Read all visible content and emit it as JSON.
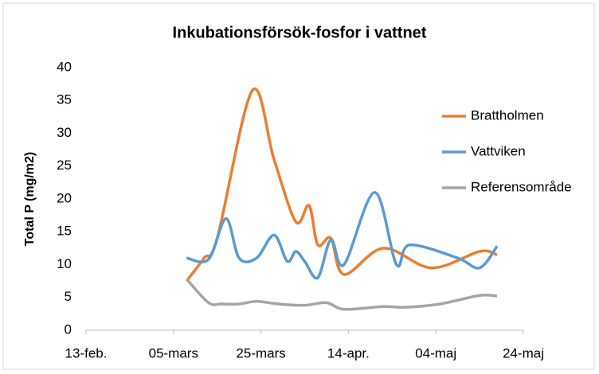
{
  "chart_data": {
    "type": "line",
    "title": "Inkubationsförsök-fosfor i vattnet",
    "ylabel": "Total P (mg/m2)",
    "xlim": [
      0,
      100
    ],
    "xticks": [
      {
        "value": 0,
        "label": "13-feb."
      },
      {
        "value": 20,
        "label": "05-mars"
      },
      {
        "value": 40,
        "label": "25-mars"
      },
      {
        "value": 60,
        "label": "14-apr."
      },
      {
        "value": 80,
        "label": "04-maj"
      },
      {
        "value": 100,
        "label": "24-maj"
      }
    ],
    "ylim": [
      0,
      40
    ],
    "yticks": [
      0,
      5,
      10,
      15,
      20,
      25,
      30,
      35,
      40
    ],
    "grid": false,
    "legend": "right",
    "series": [
      {
        "name": "Brattholmen",
        "color": "#ed7d31",
        "x": [
          23,
          27,
          30,
          38,
          43,
          48,
          51,
          53,
          56,
          59,
          68,
          79,
          90,
          94
        ],
        "values": [
          7.5,
          11,
          14,
          36.5,
          26,
          16.5,
          19,
          13,
          14,
          8.5,
          12.5,
          9.5,
          12,
          11.5
        ]
      },
      {
        "name": "Vattviken",
        "color": "#5b9bd5",
        "x": [
          23,
          28,
          32,
          35,
          39,
          43,
          46,
          48,
          50,
          53,
          56,
          59,
          66,
          71,
          74,
          85,
          90,
          94
        ],
        "values": [
          11,
          10.8,
          17,
          11,
          11,
          14.5,
          10.5,
          12,
          10.5,
          8,
          13.8,
          10,
          21,
          10,
          13,
          11,
          9.5,
          12.8
        ]
      },
      {
        "name": "Referensområde",
        "color": "#a5a5a5",
        "x": [
          23,
          28,
          31,
          35,
          39,
          44,
          50,
          55,
          59,
          68,
          73,
          81,
          90,
          94
        ],
        "values": [
          7.8,
          4.2,
          4,
          4,
          4.4,
          4,
          3.8,
          4.2,
          3.2,
          3.6,
          3.5,
          4,
          5.3,
          5.2
        ]
      }
    ]
  }
}
